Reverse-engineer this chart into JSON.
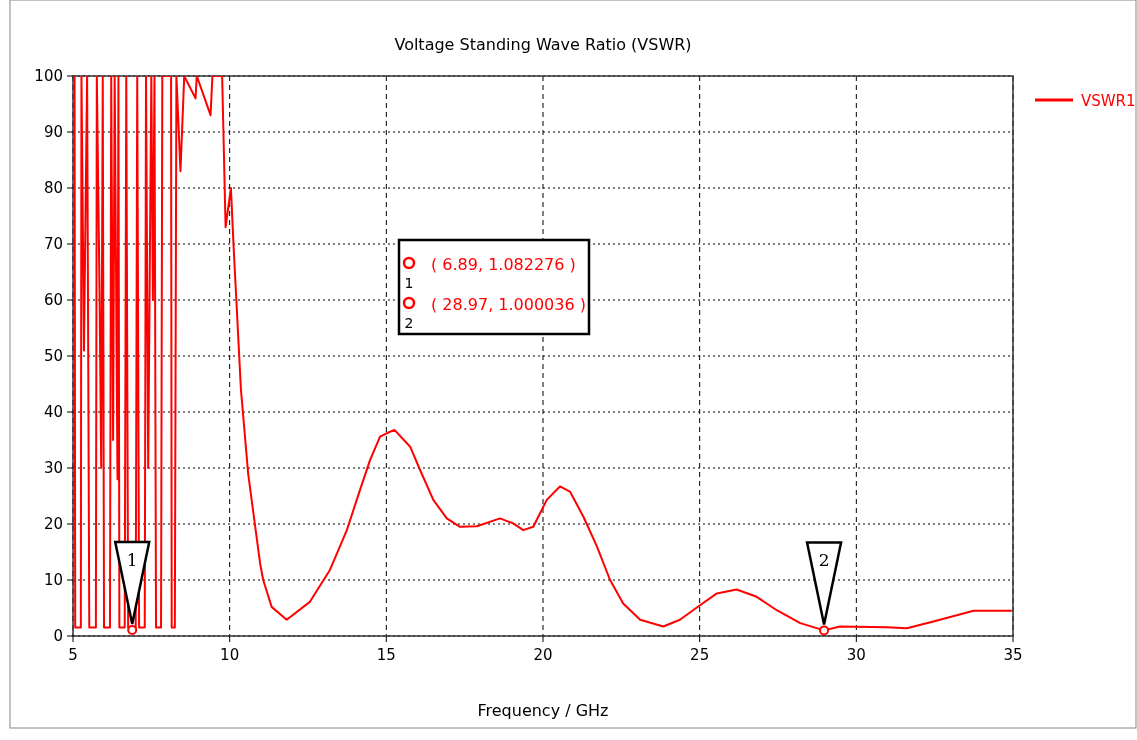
{
  "chart_data": {
    "type": "line",
    "title": "Voltage Standing Wave Ratio (VSWR)",
    "xlabel": "Frequency / GHz",
    "xlim": [
      5,
      35
    ],
    "xticks": [
      5,
      10,
      15,
      20,
      25,
      30,
      35
    ],
    "ylim": [
      0,
      100
    ],
    "yticks": [
      0,
      10,
      20,
      30,
      40,
      50,
      60,
      70,
      80,
      90,
      100
    ],
    "grid": true,
    "legend": "top right",
    "marker": "none",
    "line_style": "solid",
    "annotations": [
      {
        "text": "1",
        "x": 6.89,
        "y": 1.082276
      },
      {
        "text": "2",
        "x": 28.97,
        "y": 1.000036
      },
      "( 6.89, 1.082276 )",
      "( 28.97, 1.000036 )"
    ],
    "x": [
      5.05,
      5.07,
      5.25,
      5.27,
      5.35,
      5.45,
      5.52,
      5.73,
      5.76,
      5.85,
      5.9,
      5.95,
      5.99,
      6.18,
      6.22,
      6.28,
      6.33,
      6.42,
      6.45,
      6.48,
      6.65,
      6.7,
      6.76,
      6.89,
      7.0,
      7.05,
      7.11,
      7.29,
      7.33,
      7.4,
      7.5,
      7.55,
      7.6,
      7.65,
      7.81,
      7.85,
      8.13,
      8.15,
      8.25,
      8.3,
      8.43,
      8.55,
      8.91,
      8.95,
      9.39,
      9.45,
      9.76,
      9.87,
      10.04,
      10.13,
      10.36,
      10.59,
      10.97,
      11.07,
      11.34,
      11.82,
      12.56,
      13.2,
      13.74,
      14.16,
      14.48,
      14.8,
      15.01,
      15.26,
      15.76,
      16.08,
      16.5,
      16.93,
      17.35,
      17.89,
      18.63,
      19.05,
      19.37,
      19.69,
      20.12,
      20.54,
      20.86,
      21.29,
      21.72,
      22.14,
      22.56,
      23.1,
      23.84,
      24.37,
      25.01,
      25.55,
      26.18,
      26.82,
      27.46,
      28.21,
      28.97,
      29.48,
      30.97,
      31.61,
      32.46,
      33.74,
      34.96
    ],
    "series": [
      {
        "name": "VSWR1",
        "color": "#ff0000",
        "values": [
          100,
          1.5,
          1.5,
          100,
          51,
          100,
          1.5,
          1.5,
          100,
          60,
          30,
          100,
          1.5,
          1.5,
          100,
          35,
          100,
          28,
          100,
          1.5,
          1.5,
          100,
          1.5,
          1.1,
          1.5,
          100,
          1.5,
          1.5,
          100,
          30,
          100,
          60,
          100,
          1.5,
          1.5,
          100,
          100,
          1.5,
          1.5,
          100,
          83,
          100,
          96,
          100,
          93,
          100,
          100,
          73,
          80,
          69,
          44,
          29,
          13,
          10,
          5.2,
          2.9,
          6.1,
          11.8,
          18.9,
          26.1,
          31.4,
          35.6,
          36.2,
          36.8,
          33.8,
          29.6,
          24.3,
          21,
          19.5,
          19.6,
          21,
          20.1,
          18.9,
          19.5,
          24.3,
          26.7,
          25.8,
          21.3,
          16,
          10,
          5.8,
          2.9,
          1.7,
          2.9,
          5.5,
          7.6,
          8.3,
          7,
          4.6,
          2.3,
          1.0,
          1.7,
          1.55,
          1.4,
          2.6,
          4.5,
          4.5
        ]
      }
    ]
  }
}
